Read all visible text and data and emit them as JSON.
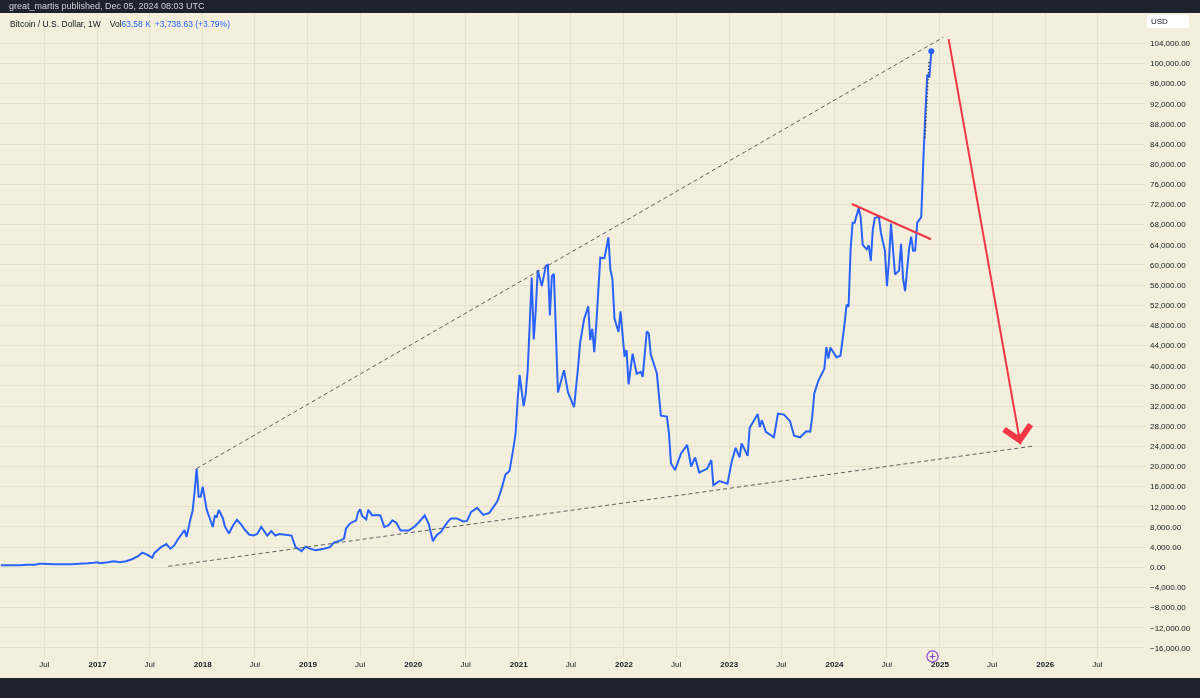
{
  "chart_data": {
    "type": "line",
    "title": "Bitcoin / U.S. Dollar, 1W",
    "ylabel": "USD",
    "annotations": [
      "great_martis published, Dec 05, 2024 08:03 UTC",
      "Vol",
      "63.58 K",
      "+3,738.63 (+3.79%)"
    ],
    "xlim": [
      "2016-01-29",
      "2026-12-13"
    ],
    "xticks": [
      {
        "value": "2016-07-01",
        "label": "Jul"
      },
      {
        "value": "2017-01-01",
        "label": "2017"
      },
      {
        "value": "2017-07-01",
        "label": "Jul"
      },
      {
        "value": "2018-01-01",
        "label": "2018"
      },
      {
        "value": "2018-07-01",
        "label": "Jul"
      },
      {
        "value": "2019-01-01",
        "label": "2019"
      },
      {
        "value": "2019-07-01",
        "label": "Jul"
      },
      {
        "value": "2020-01-01",
        "label": "2020"
      },
      {
        "value": "2020-07-01",
        "label": "Jul"
      },
      {
        "value": "2021-01-01",
        "label": "2021"
      },
      {
        "value": "2021-07-01",
        "label": "Jul"
      },
      {
        "value": "2022-01-01",
        "label": "2022"
      },
      {
        "value": "2022-07-01",
        "label": "Jul"
      },
      {
        "value": "2023-01-01",
        "label": "2023"
      },
      {
        "value": "2023-07-01",
        "label": "Jul"
      },
      {
        "value": "2024-01-01",
        "label": "2024"
      },
      {
        "value": "2024-07-01",
        "label": "Jul"
      },
      {
        "value": "2025-01-01",
        "label": "2025"
      },
      {
        "value": "2025-07-01",
        "label": "Jul"
      },
      {
        "value": "2026-01-01",
        "label": "2026"
      },
      {
        "value": "2026-07-01",
        "label": "Jul"
      }
    ],
    "ylim": [
      -18000,
      110000
    ],
    "yticks": [
      {
        "value": -16000,
        "label": "−16,000.00"
      },
      {
        "value": -12000,
        "label": "−12,000.00"
      },
      {
        "value": -8000,
        "label": "−8,000.00"
      },
      {
        "value": -4000,
        "label": "−4,000.00"
      },
      {
        "value": 0,
        "label": "0.00"
      },
      {
        "value": 4000,
        "label": "4,000.00"
      },
      {
        "value": 8000,
        "label": "8,000.00"
      },
      {
        "value": 12000,
        "label": "12,000.00"
      },
      {
        "value": 16000,
        "label": "16,000.00"
      },
      {
        "value": 20000,
        "label": "20,000.00"
      },
      {
        "value": 24000,
        "label": "24,000.00"
      },
      {
        "value": 28000,
        "label": "28,000.00"
      },
      {
        "value": 32000,
        "label": "32,000.00"
      },
      {
        "value": 36000,
        "label": "36,000.00"
      },
      {
        "value": 40000,
        "label": "40,000.00"
      },
      {
        "value": 44000,
        "label": "44,000.00"
      },
      {
        "value": 48000,
        "label": "48,000.00"
      },
      {
        "value": 52000,
        "label": "52,000.00"
      },
      {
        "value": 56000,
        "label": "56,000.00"
      },
      {
        "value": 60000,
        "label": "60,000.00"
      },
      {
        "value": 64000,
        "label": "64,000.00"
      },
      {
        "value": 68000,
        "label": "68,000.00"
      },
      {
        "value": 72000,
        "label": "72,000.00"
      },
      {
        "value": 76000,
        "label": "76,000.00"
      },
      {
        "value": 80000,
        "label": "80,000.00"
      },
      {
        "value": 84000,
        "label": "84,000.00"
      },
      {
        "value": 88000,
        "label": "88,000.00"
      },
      {
        "value": 92000,
        "label": "92,000.00"
      },
      {
        "value": 96000,
        "label": "96,000.00"
      },
      {
        "value": 100000,
        "label": "100,000.00"
      },
      {
        "value": 104000,
        "label": "104,000.00"
      }
    ],
    "grid": true,
    "series": [
      {
        "color": "#2962ff",
        "x": [
          "2016-02-01",
          "2016-03-07",
          "2016-04-04",
          "2016-05-02",
          "2016-05-30",
          "2016-06-13",
          "2016-06-27",
          "2016-08-01",
          "2016-09-05",
          "2016-10-03",
          "2016-10-31",
          "2016-11-28",
          "2016-12-19",
          "2017-01-02",
          "2017-01-09",
          "2017-02-06",
          "2017-02-27",
          "2017-03-20",
          "2017-04-10",
          "2017-05-01",
          "2017-05-22",
          "2017-06-05",
          "2017-06-19",
          "2017-07-10",
          "2017-07-17",
          "2017-08-07",
          "2017-08-28",
          "2017-09-11",
          "2017-09-25",
          "2017-10-09",
          "2017-10-30",
          "2017-11-06",
          "2017-11-20",
          "2017-11-27",
          "2017-12-04",
          "2017-12-11",
          "2017-12-18",
          "2017-12-25",
          "2018-01-01",
          "2018-01-15",
          "2018-02-05",
          "2018-02-12",
          "2018-02-19",
          "2018-02-26",
          "2018-03-12",
          "2018-03-19",
          "2018-04-02",
          "2018-04-16",
          "2018-04-30",
          "2018-05-14",
          "2018-05-28",
          "2018-06-11",
          "2018-06-25",
          "2018-07-09",
          "2018-07-23",
          "2018-08-13",
          "2018-08-27",
          "2018-09-10",
          "2018-09-24",
          "2018-10-22",
          "2018-11-05",
          "2018-11-19",
          "2018-12-10",
          "2018-12-24",
          "2019-01-07",
          "2019-01-28",
          "2019-02-25",
          "2019-03-18",
          "2019-04-01",
          "2019-04-22",
          "2019-05-06",
          "2019-05-13",
          "2019-05-27",
          "2019-06-17",
          "2019-06-24",
          "2019-07-01",
          "2019-07-08",
          "2019-07-22",
          "2019-07-29",
          "2019-08-12",
          "2019-08-26",
          "2019-09-09",
          "2019-09-23",
          "2019-10-07",
          "2019-10-21",
          "2019-11-04",
          "2019-11-18",
          "2019-12-16",
          "2020-01-06",
          "2020-01-20",
          "2020-02-10",
          "2020-02-24",
          "2020-03-09",
          "2020-03-23",
          "2020-04-06",
          "2020-04-27",
          "2020-05-11",
          "2020-06-01",
          "2020-06-22",
          "2020-07-06",
          "2020-07-20",
          "2020-08-10",
          "2020-08-31",
          "2020-09-21",
          "2020-10-19",
          "2020-11-02",
          "2020-11-16",
          "2020-11-30",
          "2020-12-14",
          "2020-12-21",
          "2020-12-28",
          "2021-01-04",
          "2021-01-18",
          "2021-01-25",
          "2021-02-01",
          "2021-02-08",
          "2021-02-15",
          "2021-02-22",
          "2021-03-01",
          "2021-03-08",
          "2021-03-22",
          "2021-04-05",
          "2021-04-12",
          "2021-04-19",
          "2021-04-26",
          "2021-05-03",
          "2021-05-10",
          "2021-05-17",
          "2021-06-07",
          "2021-06-21",
          "2021-07-12",
          "2021-07-26",
          "2021-08-02",
          "2021-08-16",
          "2021-08-30",
          "2021-09-06",
          "2021-09-13",
          "2021-09-20",
          "2021-09-27",
          "2021-10-04",
          "2021-10-11",
          "2021-10-25",
          "2021-11-01",
          "2021-11-08",
          "2021-11-15",
          "2021-11-22",
          "2021-11-29",
          "2021-12-13",
          "2021-12-20",
          "2022-01-03",
          "2022-01-10",
          "2022-01-17",
          "2022-01-31",
          "2022-02-14",
          "2022-02-28",
          "2022-03-07",
          "2022-03-21",
          "2022-03-28",
          "2022-04-04",
          "2022-04-25",
          "2022-05-02",
          "2022-05-09",
          "2022-05-30",
          "2022-06-06",
          "2022-06-13",
          "2022-06-27",
          "2022-07-18",
          "2022-08-08",
          "2022-08-22",
          "2022-09-05",
          "2022-09-19",
          "2022-10-17",
          "2022-10-31",
          "2022-11-07",
          "2022-11-28",
          "2022-12-26",
          "2023-01-09",
          "2023-01-23",
          "2023-02-06",
          "2023-02-13",
          "2023-03-06",
          "2023-03-13",
          "2023-04-10",
          "2023-04-17",
          "2023-04-24",
          "2023-05-08",
          "2023-06-05",
          "2023-06-19",
          "2023-07-10",
          "2023-07-31",
          "2023-08-14",
          "2023-09-04",
          "2023-09-25",
          "2023-10-09",
          "2023-10-16",
          "2023-10-23",
          "2023-11-06",
          "2023-11-27",
          "2023-12-04",
          "2023-12-11",
          "2023-12-18",
          "2024-01-08",
          "2024-01-22",
          "2024-02-05",
          "2024-02-12",
          "2024-02-19",
          "2024-02-26",
          "2024-03-04",
          "2024-03-11",
          "2024-03-25",
          "2024-04-01",
          "2024-04-08",
          "2024-04-22",
          "2024-04-29",
          "2024-05-06",
          "2024-05-13",
          "2024-05-20",
          "2024-06-03",
          "2024-06-10",
          "2024-06-24",
          "2024-07-01",
          "2024-07-08",
          "2024-07-15",
          "2024-07-29",
          "2024-08-12",
          "2024-08-19",
          "2024-08-26",
          "2024-09-02",
          "2024-09-16",
          "2024-09-23",
          "2024-09-30",
          "2024-10-07",
          "2024-10-14",
          "2024-10-28",
          "2024-11-04",
          "2024-11-11",
          "2024-11-18",
          "2024-11-25",
          "2024-12-02"
        ],
        "values": [
          400,
          400,
          400,
          500,
          500,
          700,
          700,
          600,
          600,
          600,
          700,
          800,
          900,
          1000,
          800,
          1000,
          1200,
          1000,
          1200,
          1600,
          2200,
          2900,
          2600,
          1900,
          2800,
          3900,
          4600,
          3700,
          4400,
          5700,
          7400,
          6000,
          9700,
          11200,
          15000,
          19600,
          14000,
          14000,
          16000,
          11400,
          8000,
          10200,
          10000,
          11400,
          9700,
          8100,
          6700,
          8300,
          9400,
          8500,
          7400,
          6500,
          6300,
          6600,
          8000,
          6300,
          7200,
          6300,
          6600,
          6400,
          6300,
          4000,
          3200,
          4100,
          3700,
          3400,
          3700,
          4000,
          4900,
          5300,
          5700,
          7700,
          8700,
          9300,
          10900,
          11500,
          10200,
          9500,
          11400,
          10300,
          10400,
          10300,
          8000,
          8300,
          9300,
          8800,
          7300,
          7300,
          8100,
          8900,
          10300,
          8600,
          5200,
          6400,
          7000,
          8800,
          9700,
          9700,
          9100,
          9200,
          11000,
          11800,
          10400,
          10800,
          13100,
          15500,
          18400,
          19100,
          23800,
          26500,
          33000,
          38200,
          32000,
          34300,
          39000,
          48000,
          57500,
          45200,
          51000,
          59000,
          55800,
          59800,
          60000,
          50000,
          57800,
          58200,
          46400,
          34700,
          39100,
          34700,
          31800,
          39800,
          44600,
          49300,
          51800,
          45100,
          47300,
          42700,
          48200,
          54900,
          61500,
          61300,
          63300,
          65500,
          59000,
          57200,
          49400,
          46700,
          50800,
          41800,
          43100,
          36300,
          42400,
          38400,
          38800,
          37800,
          46800,
          46400,
          42200,
          38500,
          34300,
          30100,
          29900,
          26600,
          20600,
          19300,
          22600,
          24300,
          20000,
          21800,
          18800,
          19600,
          21300,
          16300,
          17100,
          16600,
          20800,
          23700,
          21800,
          24600,
          22100,
          27700,
          30400,
          27800,
          29200,
          26900,
          25800,
          30500,
          30300,
          29000,
          26100,
          25800,
          27000,
          26900,
          29900,
          34500,
          37000,
          39400,
          43700,
          41400,
          43600,
          41700,
          42000,
          48300,
          52100,
          51700,
          63100,
          68400,
          68400,
          71300,
          69400,
          64000,
          63100,
          63900,
          60800,
          67000,
          69300,
          69600,
          66400,
          62800,
          55800,
          60800,
          68200,
          58100,
          58900,
          64200,
          57300,
          54800,
          63300,
          65600,
          62800,
          62900,
          68400,
          69500,
          80400,
          89800,
          97800,
          97200,
          102400
        ]
      },
      {
        "type": "scatter",
        "color": "#2962ff",
        "marker": "circle",
        "x": [
          "2024-12-02"
        ],
        "values": [
          102400
        ]
      },
      {
        "color": "#5d5d5d",
        "line_style": "dashed",
        "x": [
          "2017-12-11",
          "2025-01-13"
        ],
        "values": [
          19600,
          105200
        ]
      },
      {
        "color": "#5d5d5d",
        "line_style": "dashed",
        "x": [
          "2017-09-04",
          "2025-11-26"
        ],
        "values": [
          200,
          24100
        ]
      },
      {
        "color": "#3a3a3a",
        "line_style": "dotted",
        "x": [
          "2024-11-10",
          "2024-11-24"
        ],
        "values": [
          85200,
          100400
        ]
      },
      {
        "color": "#f23645",
        "x": [
          "2024-03-01",
          "2024-12-01"
        ],
        "values": [
          72100,
          65100
        ]
      },
      {
        "color": "#f23645",
        "x": [
          "2025-01-31",
          "2025-10-07"
        ],
        "values": [
          104800,
          24400
        ]
      }
    ]
  }
}
